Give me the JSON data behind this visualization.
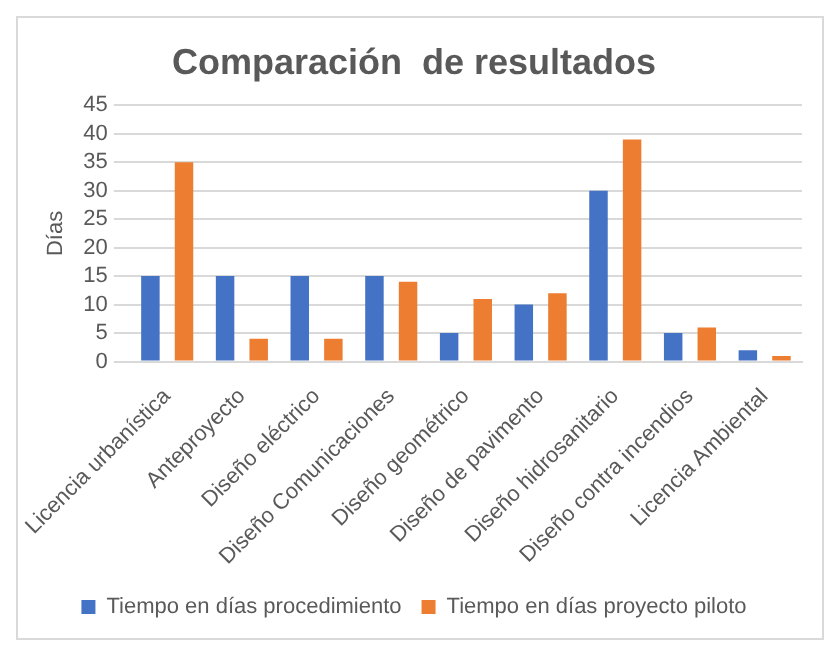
{
  "chart_data": {
    "type": "bar",
    "title": "Comparación  de resultados",
    "ylabel": "Días",
    "categories": [
      "Licencia urbanística",
      "Anteproyecto",
      "Diseño eléctrico",
      "Diseño Comunicaciones",
      "Diseño geométrico",
      "Diseño de pavimento",
      "Diseño hidrosanitario",
      "Diseño contra incendios",
      "Licencia Ambiental"
    ],
    "series": [
      {
        "name": "Tiempo en días procedimiento",
        "color": "#4472c4",
        "values": [
          15,
          15,
          15,
          15,
          5,
          10,
          30,
          5,
          2
        ]
      },
      {
        "name": "Tiempo en días proyecto piloto",
        "color": "#ed7d31",
        "values": [
          35,
          4,
          4,
          14,
          11,
          12,
          39,
          6,
          1
        ]
      }
    ],
    "ylim": [
      0,
      45
    ],
    "yticks": [
      0,
      5,
      10,
      15,
      20,
      25,
      30,
      35,
      40,
      45
    ],
    "grid": "y",
    "legend": "bottom"
  }
}
